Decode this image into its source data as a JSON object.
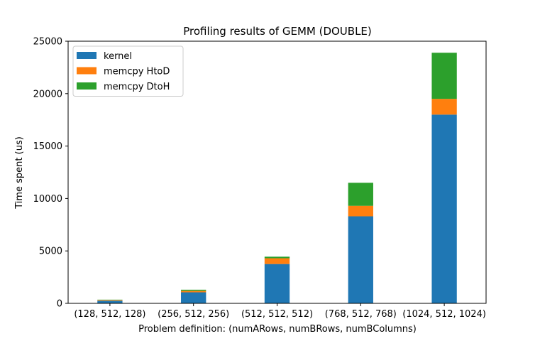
{
  "chart_data": {
    "type": "bar",
    "stacked": true,
    "title": "Profiling results of GEMM (DOUBLE)",
    "xlabel": "Problem definition: (numARows, numBRows, numBColumns)",
    "ylabel": "Time spent (us)",
    "ylim": [
      0,
      25000
    ],
    "yticks": [
      0,
      5000,
      10000,
      15000,
      20000,
      25000
    ],
    "categories": [
      "(128, 512, 128)",
      "(256, 512, 256)",
      "(512, 512, 512)",
      "(768, 512, 768)",
      "(1024, 512, 1024)"
    ],
    "series": [
      {
        "name": "kernel",
        "color": "#1f77b4",
        "values": [
          250,
          1050,
          3750,
          8300,
          18000
        ]
      },
      {
        "name": "memcpy HtoD",
        "color": "#ff7f0e",
        "values": [
          70,
          150,
          550,
          1000,
          1500
        ]
      },
      {
        "name": "memcpy DtoH",
        "color": "#2ca02c",
        "values": [
          30,
          100,
          150,
          2200,
          4400
        ]
      }
    ],
    "legend_position": "top-left",
    "grid": false
  }
}
